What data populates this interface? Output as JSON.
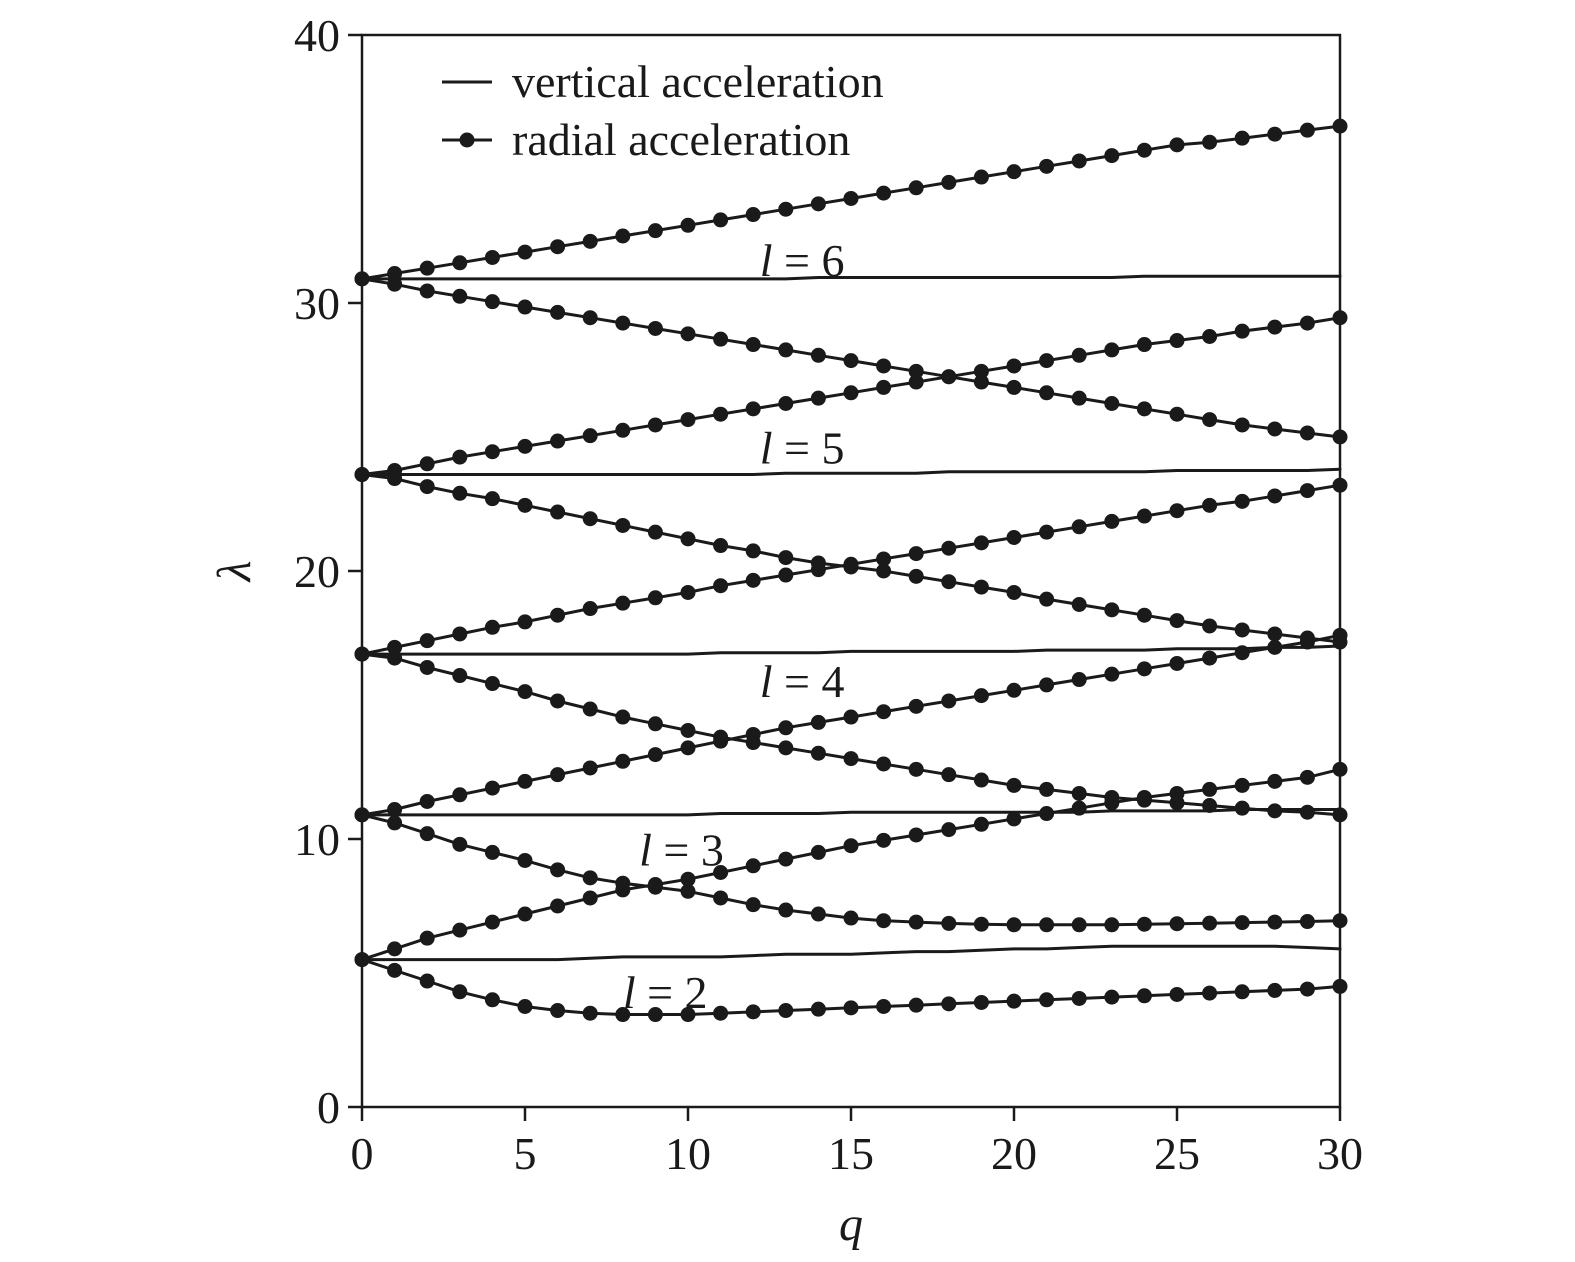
{
  "chart_data": {
    "type": "line",
    "title": "",
    "xlabel": "q",
    "ylabel": "λ",
    "xlim": [
      0,
      30
    ],
    "ylim": [
      0,
      40
    ],
    "x_ticks": [
      "0",
      "5",
      "10",
      "15",
      "20",
      "25",
      "30"
    ],
    "y_ticks": [
      "0",
      "10",
      "20",
      "30",
      "40"
    ],
    "grid": false,
    "legend": {
      "position": "top-left",
      "entries": [
        {
          "label": "vertical acceleration",
          "marker": "none"
        },
        {
          "label": "radial acceleration",
          "marker": "circle"
        }
      ]
    },
    "annotations": [
      {
        "l": "l",
        "eq": " = 6",
        "x": 13.5,
        "y": 31.6
      },
      {
        "l": "l",
        "eq": " = 5",
        "x": 13.5,
        "y": 24.6
      },
      {
        "l": "l",
        "eq": " = 4",
        "x": 13.5,
        "y": 15.9
      },
      {
        "l": "l",
        "eq": " = 3",
        "x": 9.8,
        "y": 9.6
      },
      {
        "l": "l",
        "eq": " = 2",
        "x": 9.3,
        "y": 4.3
      }
    ],
    "x": [
      0,
      1,
      2,
      3,
      4,
      5,
      6,
      7,
      8,
      9,
      10,
      11,
      12,
      13,
      14,
      15,
      16,
      17,
      18,
      19,
      20,
      21,
      22,
      23,
      24,
      25,
      26,
      27,
      28,
      29,
      30
    ],
    "series": [
      {
        "group": "vertical",
        "values": [
          5.5,
          5.5,
          5.5,
          5.5,
          5.5,
          5.5,
          5.5,
          5.55,
          5.6,
          5.6,
          5.6,
          5.6,
          5.65,
          5.7,
          5.7,
          5.7,
          5.75,
          5.8,
          5.8,
          5.85,
          5.9,
          5.9,
          5.95,
          6.0,
          6.0,
          6.0,
          6.0,
          6.0,
          6.0,
          5.95,
          5.9
        ]
      },
      {
        "group": "vertical",
        "values": [
          10.9,
          10.9,
          10.9,
          10.9,
          10.9,
          10.9,
          10.9,
          10.9,
          10.9,
          10.9,
          10.9,
          10.95,
          10.95,
          10.95,
          10.95,
          11.0,
          11.0,
          11.0,
          11.0,
          11.0,
          11.0,
          11.0,
          11.0,
          11.05,
          11.05,
          11.05,
          11.05,
          11.1,
          11.1,
          11.1,
          11.1
        ]
      },
      {
        "group": "vertical",
        "values": [
          16.9,
          16.9,
          16.9,
          16.9,
          16.9,
          16.9,
          16.9,
          16.9,
          16.9,
          16.9,
          16.9,
          16.95,
          16.95,
          16.95,
          16.95,
          17.0,
          17.0,
          17.0,
          17.0,
          17.0,
          17.0,
          17.05,
          17.05,
          17.05,
          17.05,
          17.1,
          17.1,
          17.1,
          17.15,
          17.15,
          17.2
        ]
      },
      {
        "group": "vertical",
        "values": [
          23.6,
          23.6,
          23.6,
          23.6,
          23.6,
          23.6,
          23.6,
          23.6,
          23.6,
          23.6,
          23.6,
          23.6,
          23.6,
          23.65,
          23.65,
          23.65,
          23.65,
          23.65,
          23.7,
          23.7,
          23.7,
          23.7,
          23.7,
          23.7,
          23.7,
          23.75,
          23.75,
          23.75,
          23.75,
          23.75,
          23.8
        ]
      },
      {
        "group": "vertical",
        "values": [
          30.9,
          30.9,
          30.9,
          30.9,
          30.9,
          30.9,
          30.9,
          30.9,
          30.9,
          30.9,
          30.9,
          30.9,
          30.9,
          30.9,
          30.95,
          30.95,
          30.95,
          30.95,
          30.95,
          30.95,
          30.95,
          30.95,
          30.95,
          30.95,
          31.0,
          31.0,
          31.0,
          31.0,
          31.0,
          31.0,
          31.0
        ]
      },
      {
        "group": "radial",
        "values": [
          5.5,
          5.1,
          4.7,
          4.3,
          4.0,
          3.75,
          3.6,
          3.5,
          3.45,
          3.45,
          3.45,
          3.5,
          3.55,
          3.6,
          3.65,
          3.7,
          3.75,
          3.8,
          3.85,
          3.9,
          3.95,
          4.0,
          4.05,
          4.1,
          4.15,
          4.2,
          4.25,
          4.3,
          4.35,
          4.4,
          4.5
        ]
      },
      {
        "group": "radial",
        "values": [
          5.5,
          5.9,
          6.3,
          6.6,
          6.9,
          7.2,
          7.5,
          7.8,
          8.1,
          8.3,
          8.5,
          8.75,
          9.0,
          9.25,
          9.5,
          9.75,
          9.95,
          10.15,
          10.35,
          10.55,
          10.75,
          10.95,
          11.15,
          11.35,
          11.55,
          11.7,
          11.85,
          12.0,
          12.15,
          12.3,
          12.6
        ]
      },
      {
        "group": "radial",
        "values": [
          10.9,
          10.6,
          10.2,
          9.8,
          9.5,
          9.2,
          8.85,
          8.55,
          8.35,
          8.2,
          8.05,
          7.8,
          7.55,
          7.35,
          7.2,
          7.05,
          6.95,
          6.9,
          6.85,
          6.82,
          6.8,
          6.8,
          6.8,
          6.8,
          6.82,
          6.84,
          6.86,
          6.88,
          6.9,
          6.92,
          6.95
        ]
      },
      {
        "group": "radial",
        "values": [
          10.9,
          11.1,
          11.4,
          11.65,
          11.9,
          12.15,
          12.4,
          12.65,
          12.9,
          13.15,
          13.4,
          13.65,
          13.9,
          14.15,
          14.35,
          14.55,
          14.75,
          14.95,
          15.15,
          15.35,
          15.55,
          15.75,
          15.95,
          16.15,
          16.35,
          16.55,
          16.75,
          16.95,
          17.15,
          17.35,
          17.6
        ]
      },
      {
        "group": "radial",
        "values": [
          16.9,
          16.75,
          16.4,
          16.1,
          15.8,
          15.5,
          15.15,
          14.85,
          14.55,
          14.3,
          14.05,
          13.8,
          13.6,
          13.4,
          13.2,
          13.0,
          12.8,
          12.6,
          12.4,
          12.2,
          12.0,
          11.85,
          11.7,
          11.55,
          11.45,
          11.35,
          11.25,
          11.15,
          11.05,
          11.0,
          10.9
        ]
      },
      {
        "group": "radial",
        "values": [
          16.9,
          17.15,
          17.4,
          17.65,
          17.9,
          18.1,
          18.35,
          18.6,
          18.8,
          19.0,
          19.2,
          19.45,
          19.65,
          19.85,
          20.05,
          20.25,
          20.45,
          20.65,
          20.85,
          21.05,
          21.25,
          21.45,
          21.65,
          21.85,
          22.05,
          22.25,
          22.45,
          22.6,
          22.8,
          23.0,
          23.2
        ]
      },
      {
        "group": "radial",
        "values": [
          23.6,
          23.45,
          23.15,
          22.9,
          22.7,
          22.45,
          22.2,
          21.95,
          21.7,
          21.45,
          21.2,
          20.95,
          20.75,
          20.5,
          20.3,
          20.15,
          20.0,
          19.8,
          19.6,
          19.4,
          19.2,
          18.95,
          18.75,
          18.55,
          18.35,
          18.15,
          17.95,
          17.8,
          17.65,
          17.5,
          17.35
        ]
      },
      {
        "group": "radial",
        "values": [
          23.6,
          23.75,
          24.0,
          24.25,
          24.45,
          24.65,
          24.85,
          25.05,
          25.25,
          25.45,
          25.65,
          25.85,
          26.05,
          26.25,
          26.45,
          26.65,
          26.85,
          27.05,
          27.25,
          27.45,
          27.65,
          27.85,
          28.05,
          28.25,
          28.45,
          28.6,
          28.75,
          28.95,
          29.1,
          29.25,
          29.45
        ]
      },
      {
        "group": "radial",
        "values": [
          30.9,
          30.7,
          30.45,
          30.25,
          30.05,
          29.85,
          29.65,
          29.45,
          29.25,
          29.05,
          28.85,
          28.65,
          28.45,
          28.25,
          28.05,
          27.85,
          27.65,
          27.45,
          27.25,
          27.05,
          26.85,
          26.65,
          26.45,
          26.25,
          26.05,
          25.85,
          25.65,
          25.45,
          25.3,
          25.15,
          25.0
        ]
      },
      {
        "group": "radial",
        "values": [
          30.9,
          31.1,
          31.3,
          31.5,
          31.7,
          31.9,
          32.1,
          32.3,
          32.5,
          32.7,
          32.9,
          33.1,
          33.3,
          33.5,
          33.7,
          33.9,
          34.1,
          34.3,
          34.5,
          34.7,
          34.9,
          35.1,
          35.3,
          35.5,
          35.7,
          35.9,
          36.0,
          36.15,
          36.3,
          36.45,
          36.6
        ]
      }
    ]
  }
}
